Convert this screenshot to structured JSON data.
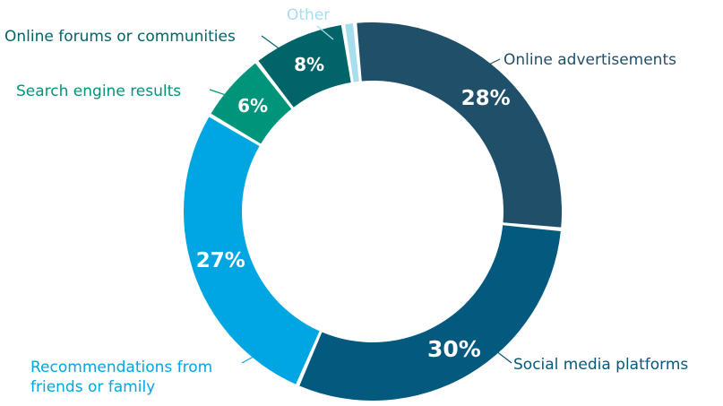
{
  "chart_data": {
    "type": "pie",
    "donut": true,
    "title": "",
    "categories": [
      "Other",
      "Online advertisements",
      "Social media platforms",
      "Recommendations from friends or family",
      "Search engine results",
      "Online forums or communities"
    ],
    "values": [
      1,
      28,
      30,
      27,
      6,
      8
    ],
    "value_labels": [
      "",
      "28%",
      "30%",
      "27%",
      "6%",
      "8%"
    ],
    "category_lines": [
      [
        "Other"
      ],
      [
        "Online advertisements"
      ],
      [
        "Social media platforms"
      ],
      [
        "Recommendations from",
        "friends or family"
      ],
      [
        "Search engine results"
      ],
      [
        "Online forums or communities"
      ]
    ],
    "colors": [
      "#a8ddee",
      "#1f4f69",
      "#04597f",
      "#00a6e2",
      "#00957a",
      "#006468"
    ],
    "label_colors": [
      "#a8ddee",
      "#1f4f69",
      "#04597f",
      "#00a6e2",
      "#00957a",
      "#006468"
    ],
    "legend": "none",
    "direction": "clockwise",
    "start": "top"
  }
}
